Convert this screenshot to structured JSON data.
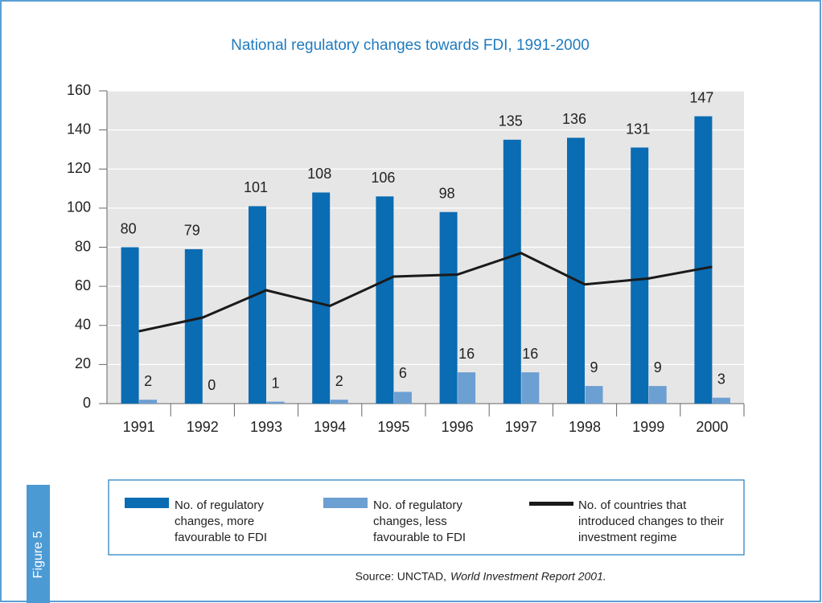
{
  "chart_data": {
    "type": "bar",
    "title": "National regulatory changes towards FDI, 1991-2000",
    "categories": [
      "1991",
      "1992",
      "1993",
      "1994",
      "1995",
      "1996",
      "1997",
      "1998",
      "1999",
      "2000"
    ],
    "series": [
      {
        "name": "No. of regulatory changes, more favourable to FDI",
        "color": "#0a6cb2",
        "type": "bar",
        "values": [
          80,
          79,
          101,
          108,
          106,
          98,
          135,
          136,
          131,
          147
        ]
      },
      {
        "name": "No. of regulatory changes, less favourable to FDI",
        "color": "#6c9fd2",
        "type": "bar",
        "values": [
          2,
          0,
          1,
          2,
          6,
          16,
          16,
          9,
          9,
          3
        ]
      },
      {
        "name": "No. of countries that introduced changes to their investment regime",
        "color": "#1a1a1a",
        "type": "line",
        "values": [
          37,
          44,
          58,
          50,
          65,
          66,
          77,
          61,
          64,
          70
        ]
      }
    ],
    "ylim": [
      0,
      160
    ],
    "yticks": [
      0,
      20,
      40,
      60,
      80,
      100,
      120,
      140,
      160
    ],
    "grid": true,
    "figure_label": "Figure 5",
    "source": "Source: UNCTAD,",
    "source_title": "World Investment Report 2001."
  }
}
